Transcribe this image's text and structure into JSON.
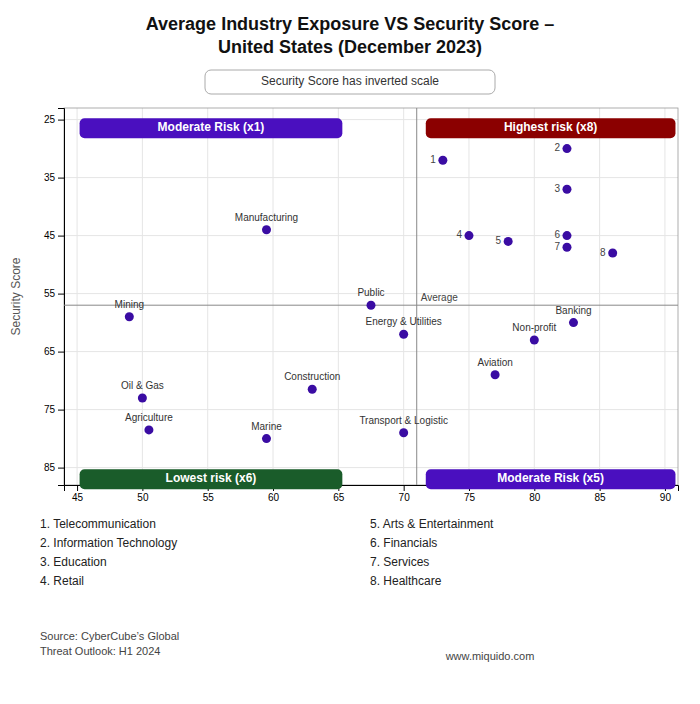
{
  "chart_data": {
    "type": "scatter",
    "title": "Average Industry Exposure VS Security Score –\nUnited States (December 2023)",
    "ylabel": "Security Score",
    "color": "#3a0ca3",
    "xlim": [
      44,
      91
    ],
    "ylim": [
      88,
      23
    ],
    "xticks": [
      45,
      50,
      55,
      60,
      65,
      70,
      75,
      80,
      85,
      90
    ],
    "yticks": [
      25,
      35,
      45,
      55,
      65,
      75,
      85
    ],
    "grid": true,
    "named_points": {
      "labels": [
        "Manufacturing",
        "Mining",
        "Oil & Gas",
        "Agriculture",
        "Marine",
        "Construction",
        "Transport & Logistic",
        "Energy & Utilities",
        "Public",
        "Banking",
        "Non-profit",
        "Aviation"
      ],
      "x": [
        59.5,
        49,
        50,
        50.5,
        59.5,
        63,
        70,
        70,
        67.5,
        83,
        80,
        77
      ],
      "values": [
        44,
        59,
        73,
        78.5,
        80,
        71.5,
        79,
        62,
        57,
        60,
        63,
        69
      ]
    },
    "numbered_points": {
      "labels": [
        "1",
        "2",
        "3",
        "4",
        "5",
        "6",
        "7",
        "8"
      ],
      "x": [
        73,
        82.5,
        82.5,
        75,
        78,
        82.5,
        82.5,
        86
      ],
      "values": [
        32,
        30,
        37,
        45,
        46,
        45,
        47,
        48
      ]
    },
    "average": {
      "label": "Average",
      "x": 71,
      "y": 57,
      "color": "#888888"
    },
    "risk_boxes": [
      {
        "label": "Moderate Risk (x1)",
        "x0": 45.5,
        "x1": 65.0,
        "y": 26.5,
        "color": "#4a0fbf",
        "text_color": "white"
      },
      {
        "label": "Highest risk (x8)",
        "x0": 72.0,
        "x1": 90.5,
        "y": 26.5,
        "color": "#8b0000",
        "text_color": "white"
      },
      {
        "label": "Lowest risk (x6)",
        "x0": 45.5,
        "x1": 65.0,
        "y": 87.0,
        "color": "#1a5c2a",
        "text_color": "white"
      },
      {
        "label": "Moderate Risk (x5)",
        "x0": 72.0,
        "x1": 90.5,
        "y": 87.0,
        "color": "#4a0fbf",
        "text_color": "white"
      }
    ],
    "note": "Security Score has inverted scale",
    "key_col1": [
      "1.  Telecommunication",
      "2.  Information Technology",
      "3.  Education",
      "4.  Retail"
    ],
    "key_col2": [
      "5.  Arts & Entertainment",
      "6.  Financials",
      "7.  Services",
      "8.  Healthcare"
    ],
    "source": "Source: CyberCube’s Global\nThreat Outlook: H1 2024",
    "website": "www.miquido.com"
  }
}
